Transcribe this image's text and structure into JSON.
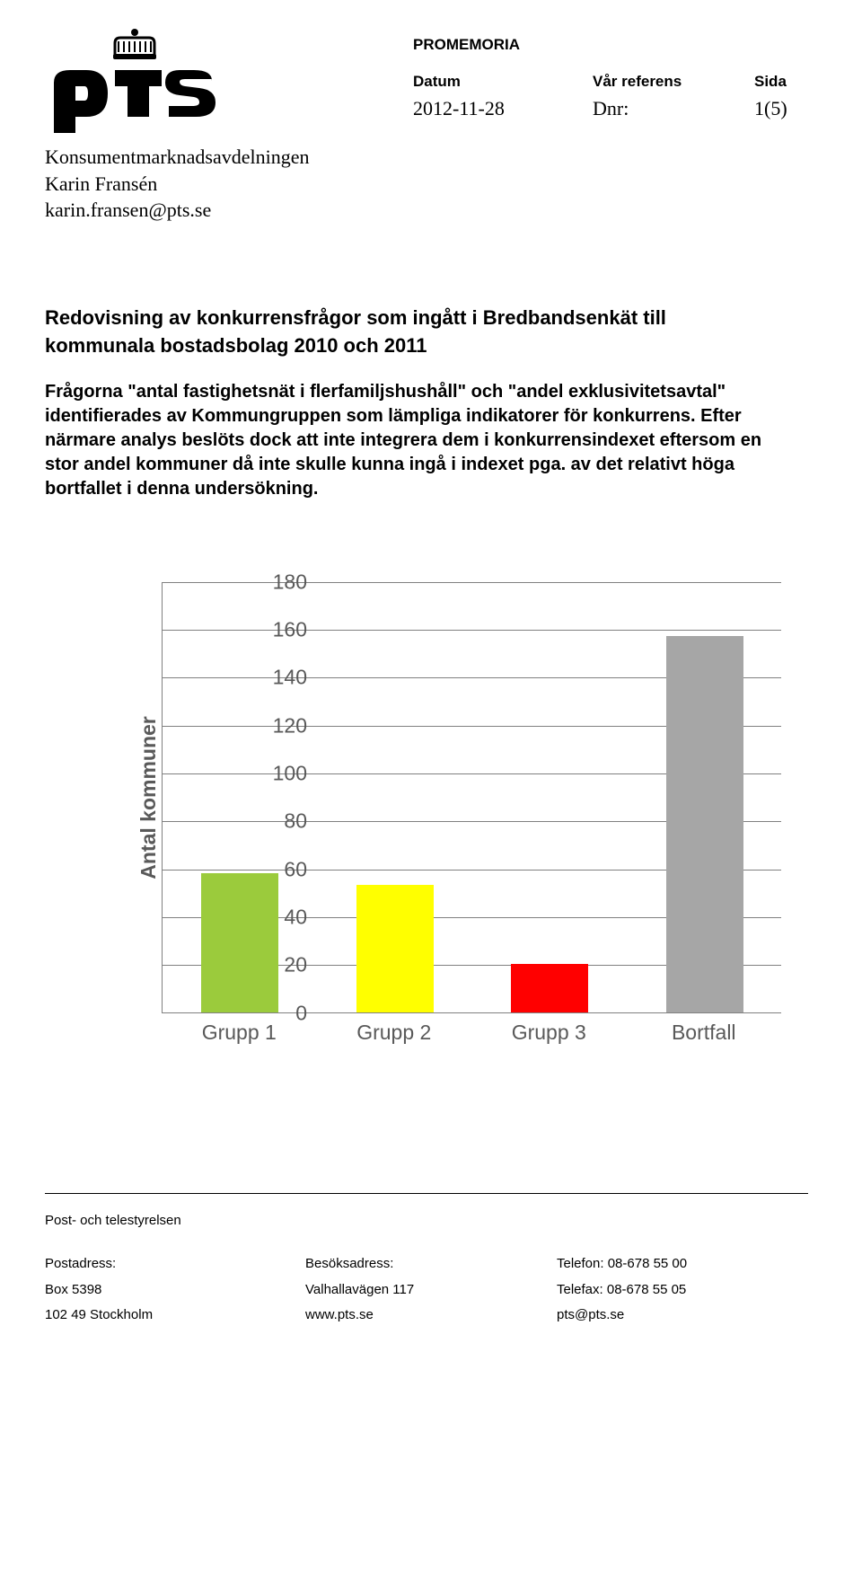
{
  "header": {
    "doc_type": "PROMEMORIA",
    "labels": {
      "datum": "Datum",
      "referens": "Vår referens",
      "sida": "Sida"
    },
    "values": {
      "datum": "2012-11-28",
      "referens": "Dnr:",
      "sida": "1(5)"
    }
  },
  "dept": {
    "name": "Konsumentmarknadsavdelningen",
    "author": "Karin Fransén",
    "email": "karin.fransen@pts.se"
  },
  "title": "Redovisning av konkurrensfrågor som ingått i Bredbandsenkät till kommunala bostadsbolag 2010 och 2011",
  "paragraph": "Frågorna \"antal fastighetsnät i flerfamiljshushåll\" och \"andel exklusivitetsavtal\" identifierades av Kommungruppen som lämpliga indikatorer för konkurrens. Efter närmare analys beslöts dock att inte integrera dem i konkurrensindexet eftersom en stor andel kommuner då inte skulle kunna ingå i indexet pga. av det relativt höga bortfallet i denna undersökning.",
  "chart": {
    "type": "bar",
    "categories": [
      "Grupp 1",
      "Grupp 2",
      "Grupp 3",
      "Bortfall"
    ],
    "values": [
      58,
      53,
      20,
      157
    ],
    "bar_colors": [
      "#9bcb3c",
      "#ffff00",
      "#ff0000",
      "#a6a6a6"
    ],
    "ylabel": "Antal kommuner",
    "ylim": [
      0,
      180
    ],
    "ytick_step": 20,
    "yticks": [
      0,
      20,
      40,
      60,
      80,
      100,
      120,
      140,
      160,
      180
    ],
    "grid_color": "#808080",
    "background_color": "#ffffff",
    "axis_text_color": "#595959",
    "tick_fontsize": 23,
    "label_fontsize": 23,
    "bar_width_ratio": 0.5
  },
  "footer": {
    "org": "Post- och telestyrelsen",
    "col1_label": "Postadress:",
    "col1_line1": "Box 5398",
    "col1_line2": "102 49 Stockholm",
    "col2_label": "Besöksadress:",
    "col2_line1": "Valhallavägen 117",
    "col2_line2": "www.pts.se",
    "col3_line0": "Telefon: 08-678 55 00",
    "col3_line1": "Telefax: 08-678 55 05",
    "col3_line2": "pts@pts.se"
  }
}
